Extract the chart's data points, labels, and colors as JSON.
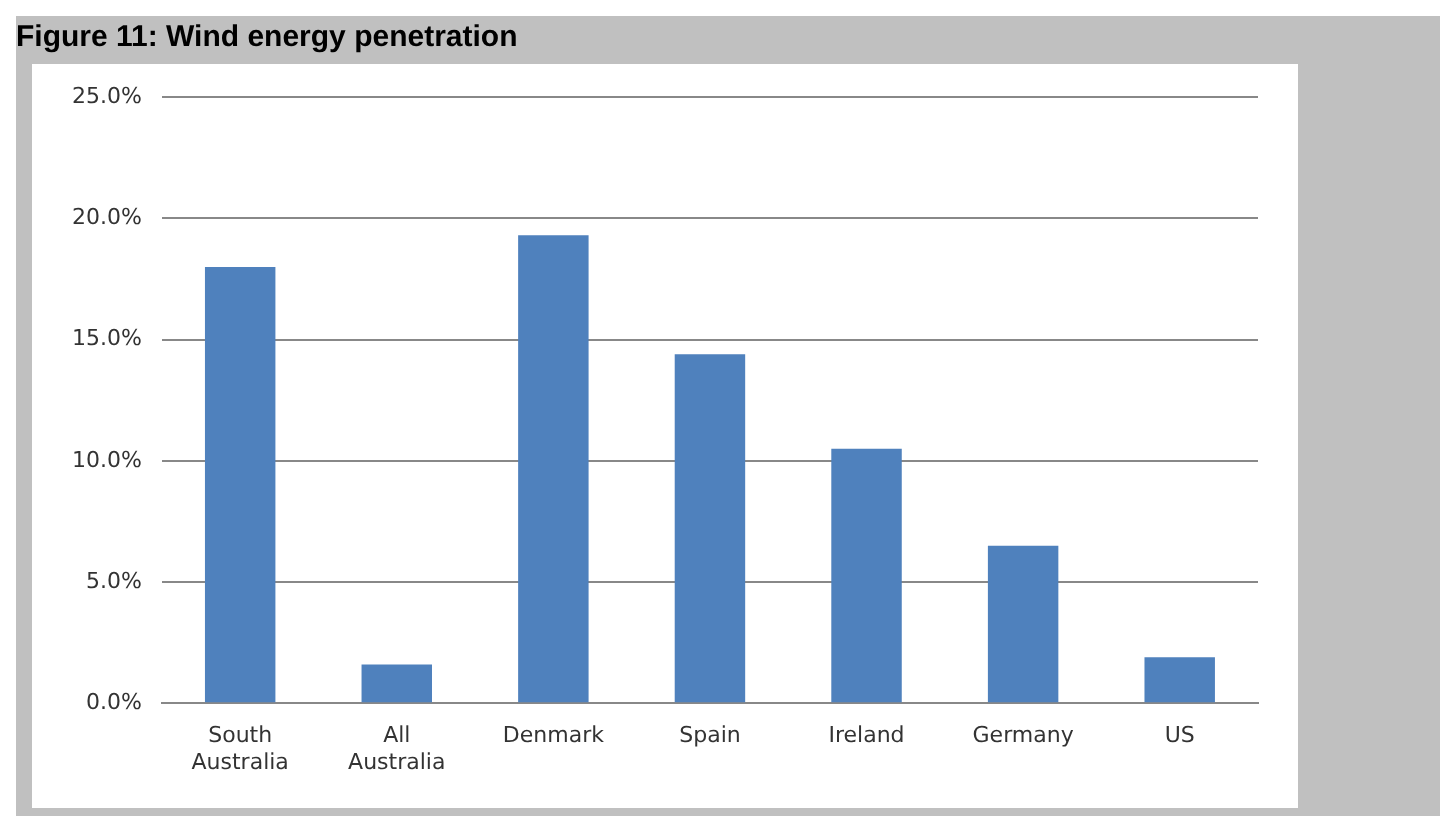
{
  "chart_data": {
    "type": "bar",
    "title": "Figure 11: Wind energy penetration",
    "categories": [
      "South Australia",
      "All Australia",
      "Denmark",
      "Spain",
      "Ireland",
      "Germany",
      "US"
    ],
    "values": [
      18.0,
      1.6,
      19.3,
      14.4,
      10.5,
      6.5,
      1.9
    ],
    "color": "#4f81bd",
    "ylim": [
      0,
      25
    ],
    "yticks": [
      {
        "value": 0,
        "label": "0.0%"
      },
      {
        "value": 5,
        "label": "5.0%"
      },
      {
        "value": 10,
        "label": "10.0%"
      },
      {
        "value": 15,
        "label": "15.0%"
      },
      {
        "value": 20,
        "label": "20.0%"
      },
      {
        "value": 25,
        "label": "25.0%"
      }
    ],
    "grid": "y",
    "legend": false
  }
}
